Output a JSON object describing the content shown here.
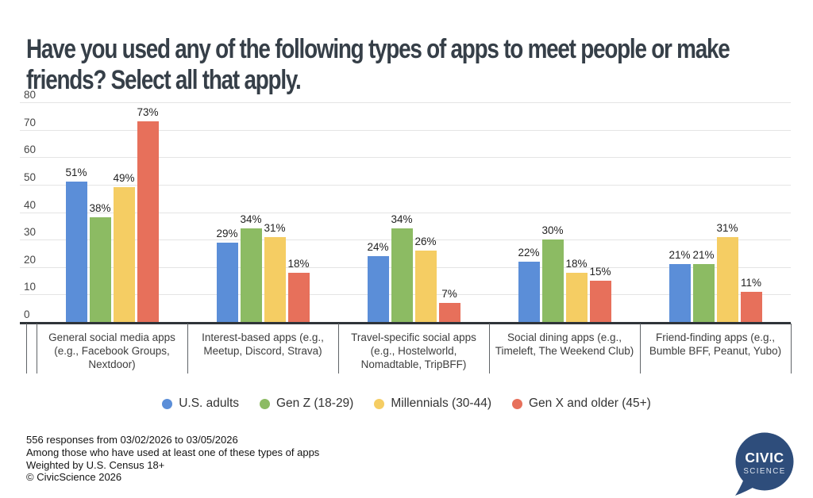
{
  "title": "Have you used any of the following types of apps to meet people or make friends? Select all that apply.",
  "chart_data": {
    "type": "bar",
    "categories": [
      "General social media apps (e.g., Facebook Groups, Nextdoor)",
      "Interest-based apps (e.g., Meetup, Discord, Strava)",
      "Travel-specific social apps (e.g., Hostelworld, Nomadtable, TripBFF)",
      "Social dining apps (e.g., Timeleft, The Weekend Club)",
      "Friend-finding apps (e.g., Bumble BFF, Peanut, Yubo)"
    ],
    "series": [
      {
        "name": "U.S. adults",
        "color": "#5b8ed8",
        "values": [
          51,
          29,
          24,
          22,
          21
        ]
      },
      {
        "name": "Gen Z (18-29)",
        "color": "#8cbb63",
        "values": [
          38,
          34,
          34,
          30,
          21
        ]
      },
      {
        "name": "Millennials (30-44)",
        "color": "#f5cd63",
        "values": [
          49,
          31,
          26,
          18,
          31
        ]
      },
      {
        "name": "Gen X and older (45+)",
        "color": "#e7705b",
        "values": [
          73,
          18,
          7,
          15,
          11
        ]
      }
    ],
    "ylim": [
      0,
      80
    ],
    "ytick_step": 10,
    "yticks": [
      "0",
      "10",
      "20",
      "30",
      "40",
      "50",
      "60",
      "70",
      "80"
    ],
    "value_suffix": "%",
    "grid": "horizontal",
    "legend_position": "bottom"
  },
  "footer": {
    "lines": [
      "556 responses from 03/02/2026 to 03/05/2026",
      "Among those who have used at least one of these types of apps",
      "Weighted by U.S. Census 18+",
      "© CivicScience 2026"
    ]
  },
  "logo": {
    "line1": "CIVIC",
    "line2": "SCIENCE",
    "color": "#2e4d7b"
  }
}
